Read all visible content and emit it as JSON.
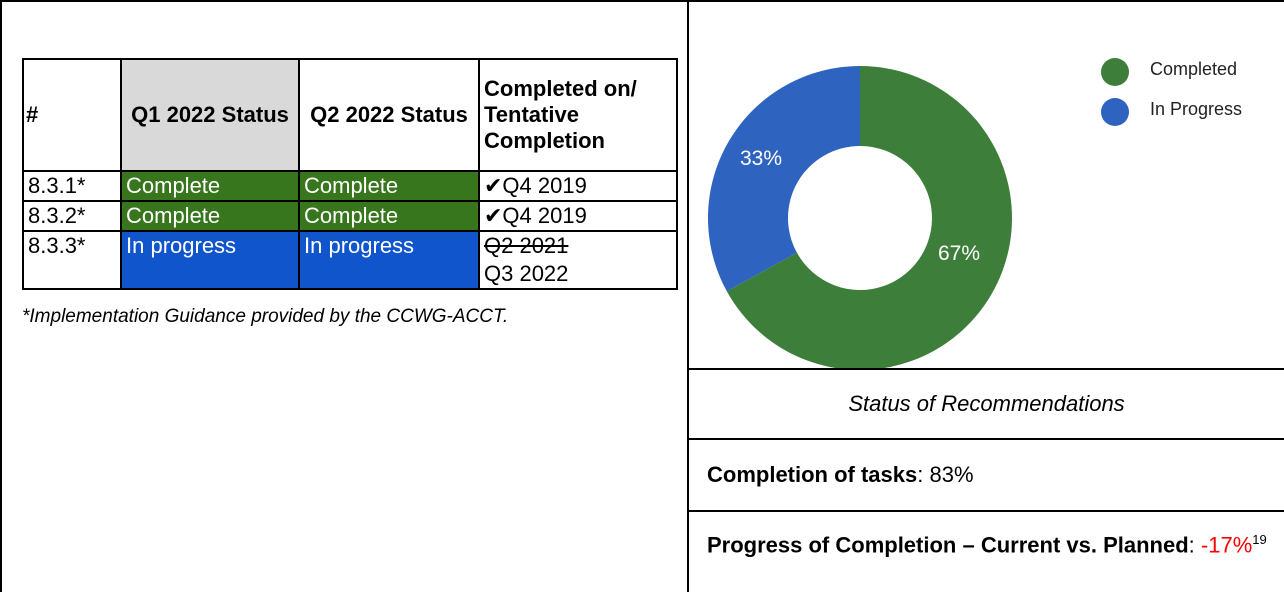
{
  "table": {
    "header": [
      "#",
      "Q1 2022 Status",
      "Q2 2022 Status",
      "Completed on/ Tentative Completion"
    ],
    "rows": [
      [
        "8.3.1*",
        "Complete",
        "Complete",
        "✔Q4 2019"
      ],
      [
        "8.3.2*",
        "Complete",
        "Complete",
        "✔Q4 2019"
      ],
      [
        "8.3.3*",
        "In progress",
        "In progress",
        {
          "struck": "Q2 2021",
          "text": "Q3 2022"
        }
      ]
    ],
    "footnote": "*Implementation Guidance provided by the CCWG-ACCT."
  },
  "chart_data": {
    "type": "donut",
    "categories": [
      "Completed",
      "In Progress"
    ],
    "values": [
      67,
      33
    ],
    "value_labels": [
      "67%",
      "33%"
    ],
    "colors": [
      "#3d7f3a",
      "#2f63c0"
    ],
    "legend": "top-right"
  },
  "caption": "Status of Recommendations",
  "completion": {
    "label": "Completion of tasks",
    "rest": ": 83%"
  },
  "progress": {
    "label": "Progress of Completion – Current vs. Planned",
    "sep": ": ",
    "value": "-17%",
    "ref": "19"
  }
}
